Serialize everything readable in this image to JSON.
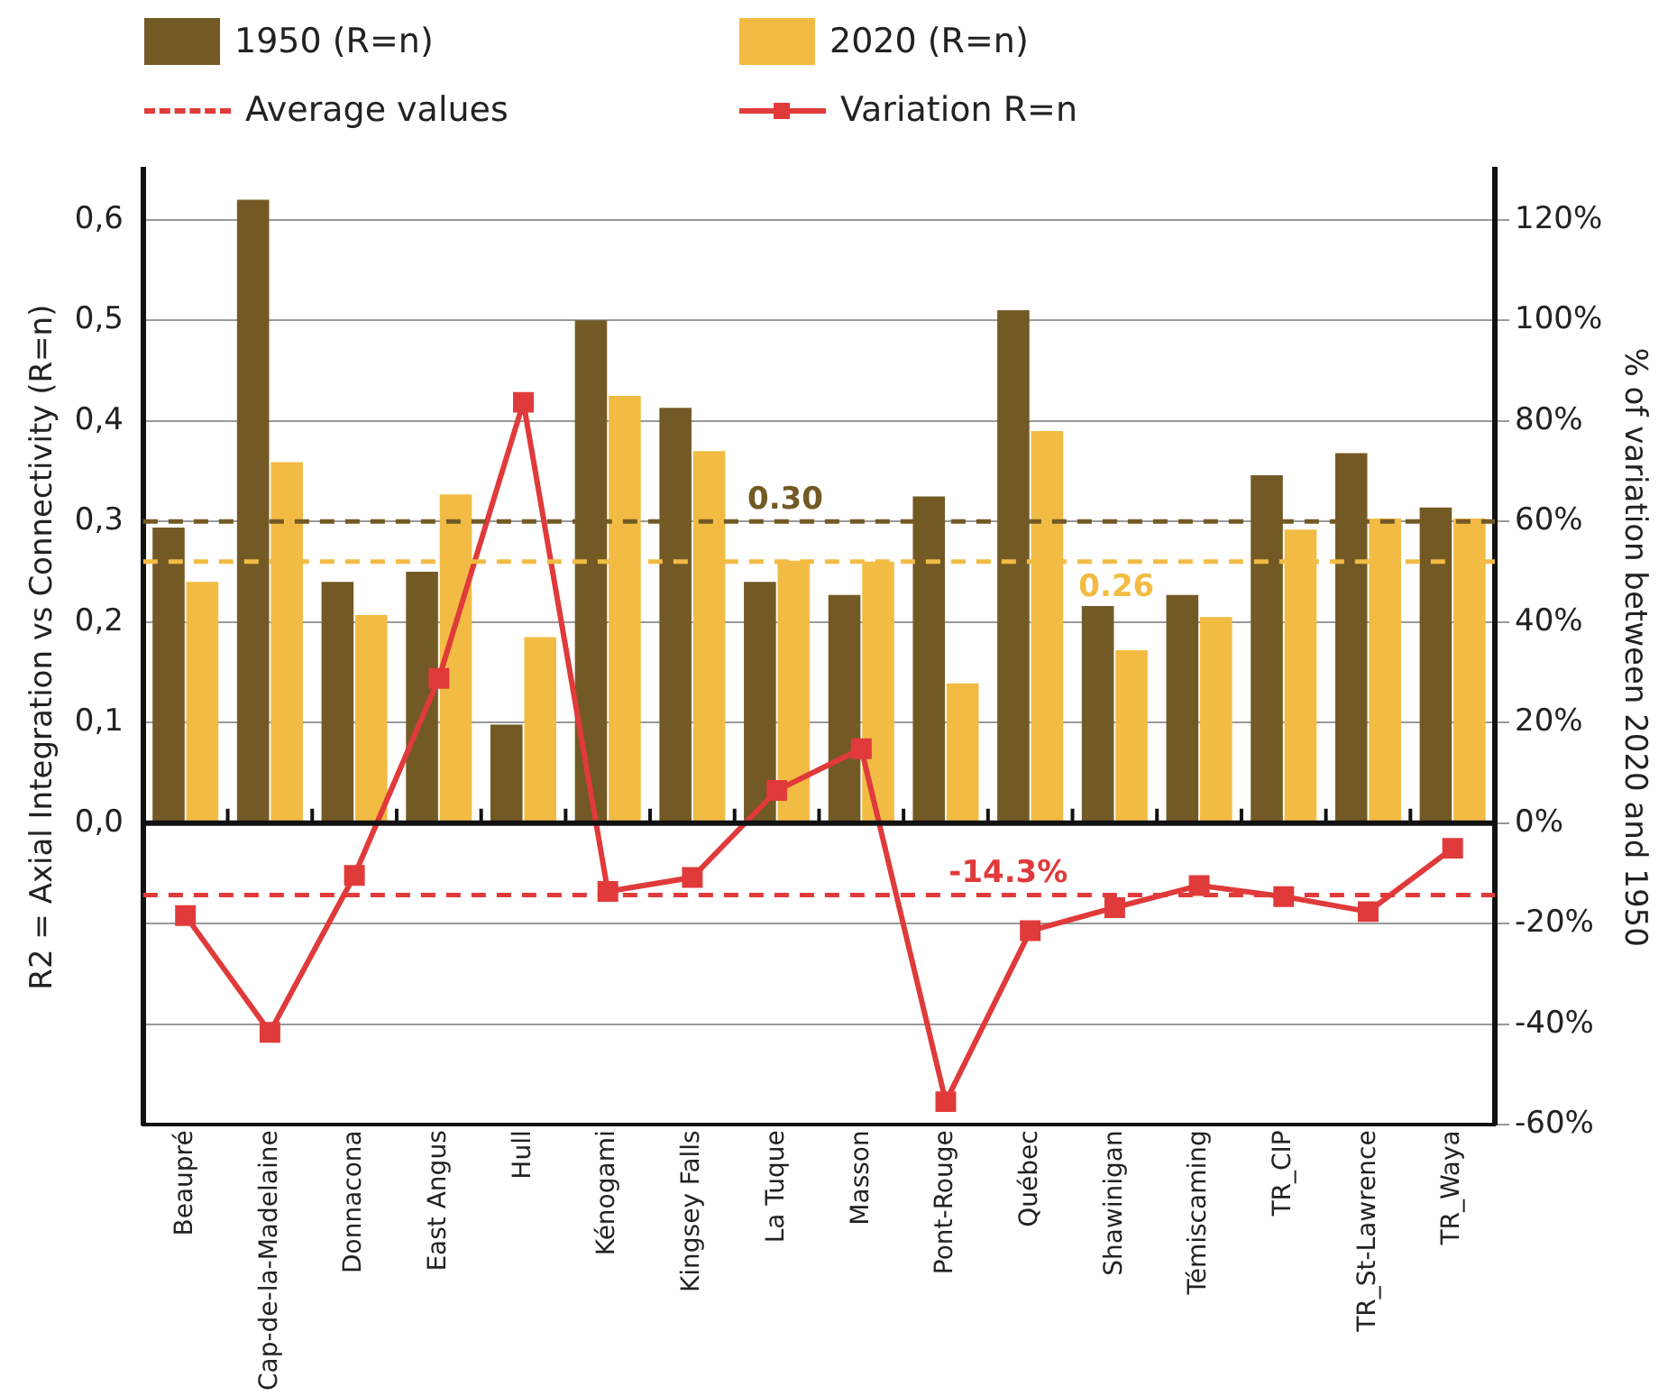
{
  "chart_data": {
    "type": "bar",
    "ylabel": "R2 = Axial Integration vs Connectivity (R=n)",
    "y2label": "% of variation between 2020 and 1950",
    "categories": [
      "Beaupré",
      "Cap-de-la-Madelaine",
      "Donnacona",
      "East Angus",
      "Hull",
      "Kénogami",
      "Kingsey Falls",
      "La Tuque",
      "Masson",
      "Pont-Rouge",
      "Québec",
      "Shawinigan",
      "Témiscaming",
      "TR_CIP",
      "TR_St-Lawrence",
      "TR_Waya"
    ],
    "series": [
      {
        "name": "1950 (R=n)",
        "color": "#735a25",
        "values": [
          0.294,
          0.62,
          0.24,
          0.25,
          0.098,
          0.5,
          0.413,
          0.24,
          0.227,
          0.325,
          0.51,
          0.216,
          0.227,
          0.346,
          0.368,
          0.314
        ]
      },
      {
        "name": "2020 (R=n)",
        "color": "#f2bc44",
        "values": [
          0.24,
          0.359,
          0.207,
          0.327,
          0.185,
          0.425,
          0.37,
          0.261,
          0.26,
          0.139,
          0.39,
          0.172,
          0.205,
          0.292,
          0.303,
          0.303
        ]
      },
      {
        "name": "Variation R=n",
        "type": "line",
        "axis": "y2",
        "color": "#e03a3a",
        "marker": "square",
        "values": [
          -18.4,
          -41.6,
          -10.4,
          28.8,
          83.7,
          -13.6,
          -10.8,
          6.5,
          14.8,
          -55.4,
          -21.4,
          -16.8,
          -12.4,
          -14.6,
          -17.6,
          -5
        ]
      }
    ],
    "ylim": [
      -0.3,
      0.65
    ],
    "yticks": [
      {
        "value": 0,
        "label": "0,0"
      },
      {
        "value": 0.1,
        "label": "0,1"
      },
      {
        "value": 0.2,
        "label": "0,2"
      },
      {
        "value": 0.3,
        "label": "0,3"
      },
      {
        "value": 0.4,
        "label": "0,4"
      },
      {
        "value": 0.5,
        "label": "0,5"
      },
      {
        "value": 0.6,
        "label": "0,6"
      }
    ],
    "y2lim": [
      -60,
      130
    ],
    "y2ticks": [
      {
        "value": -60,
        "label": "-60%"
      },
      {
        "value": -40,
        "label": "-40%"
      },
      {
        "value": -20,
        "label": "-20%"
      },
      {
        "value": 0,
        "label": "0%"
      },
      {
        "value": 20,
        "label": "20%"
      },
      {
        "value": 40,
        "label": "40%"
      },
      {
        "value": 60,
        "label": "60%"
      },
      {
        "value": 80,
        "label": "80%"
      },
      {
        "value": 100,
        "label": "100%"
      },
      {
        "value": 120,
        "label": "120%"
      }
    ],
    "ref_lines": [
      {
        "axis": "y",
        "value": 0.3,
        "label": "0.30",
        "color": "#735a25",
        "line_style": "dashed"
      },
      {
        "axis": "y",
        "value": 0.26,
        "label": "0.26",
        "color": "#f2bc44",
        "line_style": "dashed"
      },
      {
        "axis": "y2",
        "value": -14.3,
        "label": "-14.3%",
        "color": "#e03a3a",
        "line_style": "dashed"
      }
    ],
    "annotations": [
      "Average values"
    ],
    "grid": true,
    "legend": "top left"
  }
}
